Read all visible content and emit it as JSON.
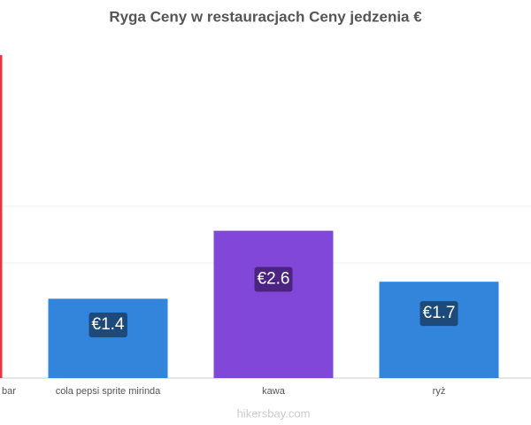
{
  "chart_data": {
    "type": "bar",
    "title": "Ryga Ceny w restauracjach Ceny jedzenia €",
    "categories": [
      "bar",
      "cola pepsi sprite mirinda",
      "kawa",
      "ryż"
    ],
    "values": [
      5.7,
      1.4,
      2.6,
      1.7
    ],
    "value_labels": [
      null,
      "€1.4",
      "€2.6",
      "€1.7"
    ],
    "colors": [
      "#e8343c",
      "#3384db",
      "#8047d9",
      "#3384db"
    ],
    "label_colors": [
      "#7a1a1e",
      "#1d4a7a",
      "#4a2480",
      "#1d4a7a"
    ],
    "footer": "hikersbay.com"
  }
}
